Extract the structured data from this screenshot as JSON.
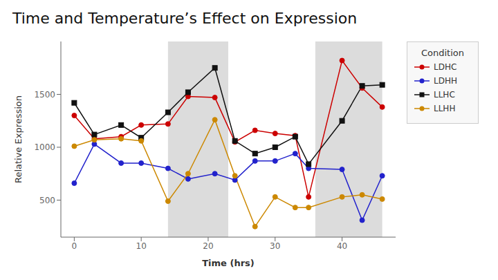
{
  "chart_data": {
    "type": "line",
    "title": "Time and Temperature’s Effect on Expression",
    "x_label": "Time (hrs)",
    "y_label": "Relative Expression",
    "legend_title": "Condition",
    "legend": "right",
    "grid": false,
    "x": [
      0,
      3,
      7,
      10,
      14,
      17,
      21,
      24,
      27,
      30,
      33,
      35,
      40,
      43,
      46
    ],
    "series": [
      {
        "name": "LDHC",
        "color": "#cc0000",
        "marker": "circle",
        "values": [
          1300,
          1080,
          1100,
          1210,
          1220,
          1480,
          1470,
          1050,
          1160,
          1130,
          1110,
          530,
          1820,
          1560,
          1380
        ]
      },
      {
        "name": "LDHH",
        "color": "#2222cc",
        "marker": "circle",
        "values": [
          660,
          1030,
          850,
          850,
          800,
          700,
          750,
          690,
          870,
          870,
          940,
          800,
          790,
          310,
          730
        ]
      },
      {
        "name": "LLHC",
        "color": "#111111",
        "marker": "square",
        "values": [
          1420,
          1120,
          1210,
          1090,
          1330,
          1520,
          1750,
          1060,
          940,
          1000,
          1100,
          840,
          1250,
          1580,
          1590
        ]
      },
      {
        "name": "LLHH",
        "color": "#cc8800",
        "marker": "circle",
        "values": [
          1010,
          1070,
          1080,
          1060,
          490,
          750,
          1260,
          730,
          250,
          530,
          430,
          430,
          530,
          550,
          510
        ]
      }
    ],
    "shaded_regions": [
      [
        14,
        23
      ],
      [
        36,
        46
      ]
    ],
    "shade_color": "#dcdcdc",
    "xlim": [
      -2,
      48
    ],
    "xticks": [
      0,
      10,
      20,
      30,
      40
    ],
    "ylim": [
      150,
      2000
    ],
    "yticks": [
      500,
      1000,
      1500
    ]
  }
}
